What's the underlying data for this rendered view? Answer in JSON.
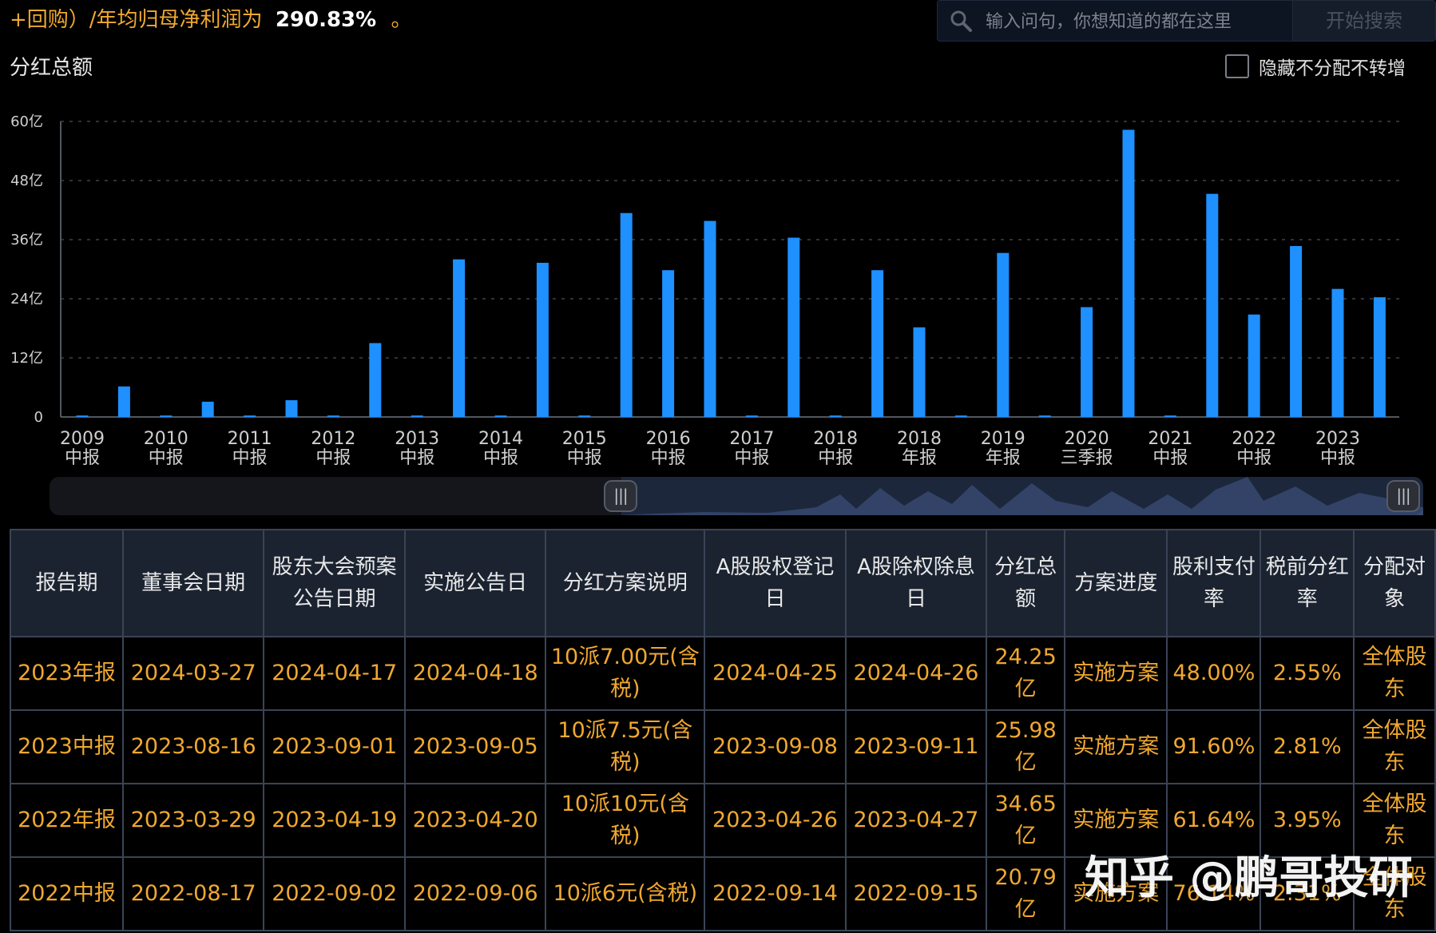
{
  "header": {
    "summary_text": "+回购）/年均归母净利润为",
    "summary_value": "290.83%",
    "summary_tail": "。"
  },
  "search": {
    "placeholder": "输入问句，你想知道的都在这里",
    "button_label": "开始搜索"
  },
  "section": {
    "title": "分红总额",
    "hide_toggle_label": "隐藏不分配不转增",
    "hide_toggle_checked": false
  },
  "colors": {
    "bar": "#1e90ff",
    "accent": "#f0a830",
    "header_bg": "#1b2331",
    "border": "#3a4456"
  },
  "chart_data": {
    "type": "bar",
    "title": "分红总额",
    "xlabel": "",
    "ylabel": "",
    "ylim": [
      0,
      60
    ],
    "ytick_values": [
      0,
      12,
      24,
      36,
      48,
      60
    ],
    "ytick_labels": [
      "0",
      "12亿",
      "24亿",
      "36亿",
      "48亿",
      "60亿"
    ],
    "grid": true,
    "values": [
      0.3,
      6.2,
      0.3,
      3.1,
      0.3,
      3.4,
      0.3,
      15.0,
      0.3,
      32.0,
      0.3,
      31.3,
      0.3,
      41.4,
      29.8,
      39.8,
      0.3,
      36.4,
      0.3,
      29.8,
      18.2,
      0.3,
      33.3,
      0.3,
      22.3,
      58.3,
      0.3,
      45.3,
      20.8,
      34.7,
      26.0,
      24.3
    ],
    "x_labels": [
      {
        "year": "2009",
        "period": "中报"
      },
      {
        "year": "2010",
        "period": "中报"
      },
      {
        "year": "2011",
        "period": "中报"
      },
      {
        "year": "2012",
        "period": "中报"
      },
      {
        "year": "2013",
        "period": "中报"
      },
      {
        "year": "2014",
        "period": "中报"
      },
      {
        "year": "2015",
        "period": "中报"
      },
      {
        "year": "2016",
        "period": "中报"
      },
      {
        "year": "2017",
        "period": "中报"
      },
      {
        "year": "2018",
        "period": "中报"
      },
      {
        "year": "2018",
        "period": "年报"
      },
      {
        "year": "2019",
        "period": "年报"
      },
      {
        "year": "2020",
        "period": "三季报"
      },
      {
        "year": "2021",
        "period": "中报"
      },
      {
        "year": "2022",
        "period": "中报"
      },
      {
        "year": "2023",
        "period": "中报"
      }
    ]
  },
  "table": {
    "headers": [
      "报告期",
      "董事会日期",
      "股东大会预案公告日期",
      "实施公告日",
      "分红方案说明",
      "A股股权登记日",
      "A股除权除息日",
      "分红总额",
      "方案进度",
      "股利支付率",
      "税前分红率",
      "分配对象"
    ],
    "rows": [
      [
        "2023年报",
        "2024-03-27",
        "2024-04-17",
        "2024-04-18",
        "10派7.00元(含税)",
        "2024-04-25",
        "2024-04-26",
        "24.25亿",
        "实施方案",
        "48.00%",
        "2.55%",
        "全体股东"
      ],
      [
        "2023中报",
        "2023-08-16",
        "2023-09-01",
        "2023-09-05",
        "10派7.5元(含税)",
        "2023-09-08",
        "2023-09-11",
        "25.98亿",
        "实施方案",
        "91.60%",
        "2.81%",
        "全体股东"
      ],
      [
        "2022年报",
        "2023-03-29",
        "2023-04-19",
        "2023-04-20",
        "10派10元(含税)",
        "2023-04-26",
        "2023-04-27",
        "34.65亿",
        "实施方案",
        "61.64%",
        "3.95%",
        "全体股东"
      ],
      [
        "2022中报",
        "2022-08-17",
        "2022-09-02",
        "2022-09-06",
        "10派6元(含税)",
        "2022-09-14",
        "2022-09-15",
        "20.79亿",
        "实施方案",
        "76.14%",
        "2.31%",
        "全体股东"
      ]
    ]
  },
  "watermark": "知乎 @鹏哥投研"
}
